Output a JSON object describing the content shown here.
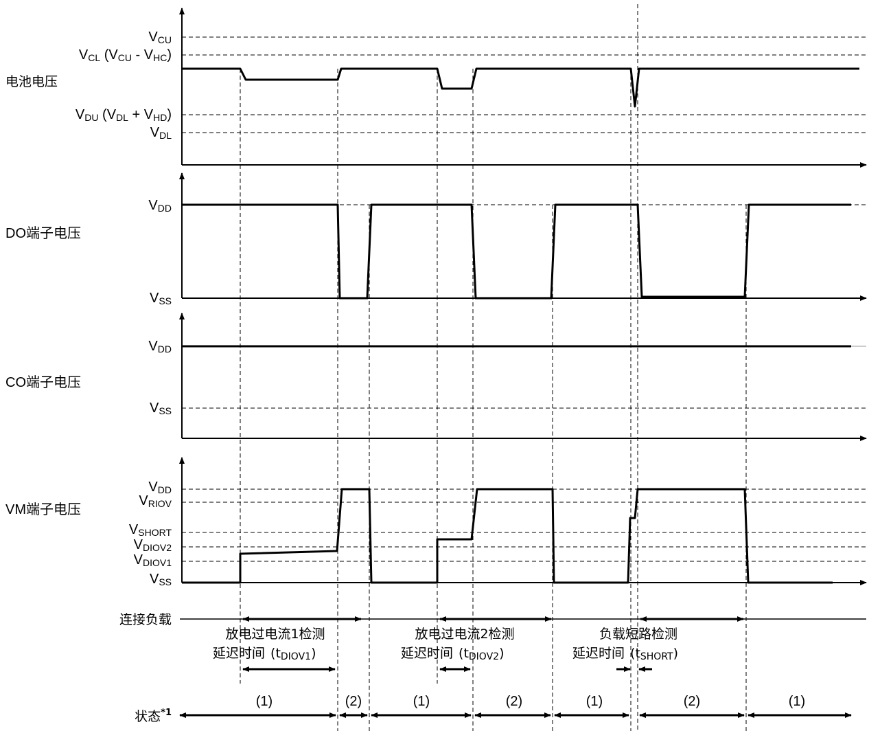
{
  "panels": {
    "battery": {
      "title": "电池电压",
      "levels": [
        {
          "main": "V",
          "sub": "CU",
          "rest": ""
        },
        {
          "main": "V",
          "sub": "CL",
          "rest": " (V",
          "sub2": "CU",
          "rest2": " - V",
          "sub3": "HC",
          "rest3": ")"
        },
        {
          "main": "V",
          "sub": "DU",
          "rest": " (V",
          "sub2": "DL",
          "rest2": " + V",
          "sub3": "HD",
          "rest3": ")"
        },
        {
          "main": "V",
          "sub": "DL",
          "rest": ""
        }
      ]
    },
    "do": {
      "title": "DO端子电压",
      "levels": [
        {
          "main": "V",
          "sub": "DD"
        },
        {
          "main": "V",
          "sub": "SS"
        }
      ]
    },
    "co": {
      "title": "CO端子电压",
      "levels": [
        {
          "main": "V",
          "sub": "DD"
        },
        {
          "main": "V",
          "sub": "SS"
        }
      ]
    },
    "vm": {
      "title": "VM端子电压",
      "levels": [
        {
          "main": "V",
          "sub": "DD"
        },
        {
          "main": "V",
          "sub": "RIOV"
        },
        {
          "main": "V",
          "sub": "SHORT"
        },
        {
          "main": "V",
          "sub": "DIOV2"
        },
        {
          "main": "V",
          "sub": "DIOV1"
        },
        {
          "main": "V",
          "sub": "SS"
        }
      ]
    }
  },
  "load_row": {
    "label": "连接负载",
    "annotations": [
      {
        "line1": "放电过电流1检测",
        "line2": "延迟时间",
        "paren_main": "t",
        "paren_sub": "DIOV1"
      },
      {
        "line1": "放电过电流2检测",
        "line2": "延迟时间",
        "paren_main": "t",
        "paren_sub": "DIOV2"
      },
      {
        "line1": "负载短路检测",
        "line2": "延迟时间",
        "paren_main": "t",
        "paren_sub": "SHORT"
      }
    ]
  },
  "state_row": {
    "label": "状态",
    "footnote": "*1",
    "states": [
      "(1)",
      "(2)",
      "(1)",
      "(2)",
      "(1)",
      "(2)",
      "(1)"
    ]
  }
}
